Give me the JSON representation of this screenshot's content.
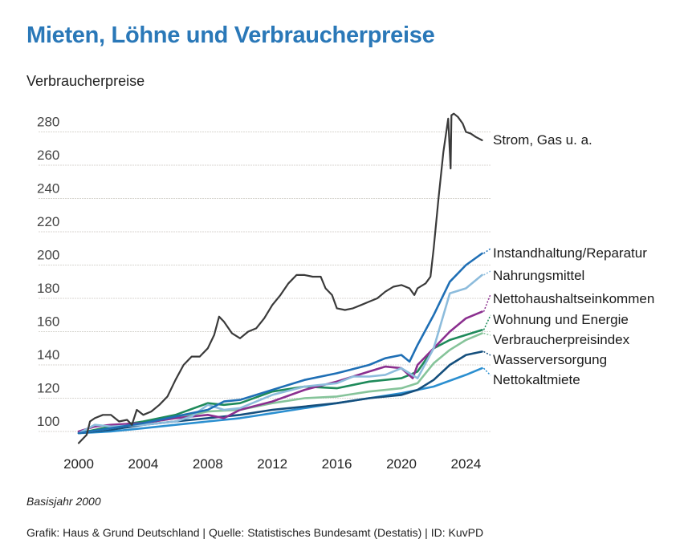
{
  "header": {
    "title": "Mieten, Löhne und Verbraucherpreise",
    "subtitle": "Verbraucherpreise"
  },
  "footer": {
    "note": "Basisjahr 2000",
    "source": "Grafik: Haus & Grund Deutschland | Quelle: Statistisches Bundesamt (Destatis) | ID: KuvPD"
  },
  "chart_data": {
    "type": "line",
    "title": "Mieten, Löhne und Verbraucherpreise",
    "subtitle": "Verbraucherpreise",
    "xlabel": "",
    "ylabel": "",
    "xlim": [
      2000,
      2025.3
    ],
    "ylim": [
      93,
      292
    ],
    "yticks": [
      100,
      120,
      140,
      160,
      180,
      200,
      220,
      240,
      260,
      280
    ],
    "xticks": [
      2000,
      2004,
      2008,
      2012,
      2016,
      2020,
      2024
    ],
    "grid": "horizontal",
    "legend": "direct labels at right end of lines",
    "series": [
      {
        "name": "Strom, Gas u. a.",
        "color": "#3a3a3a",
        "x": [
          2000,
          2000.5,
          2000.7,
          2001,
          2001.5,
          2002,
          2002.5,
          2003,
          2003.3,
          2003.6,
          2004,
          2004.5,
          2005,
          2005.5,
          2006,
          2006.5,
          2007,
          2007.5,
          2008,
          2008.4,
          2008.7,
          2009,
          2009.5,
          2010,
          2010.5,
          2011,
          2011.5,
          2012,
          2012.5,
          2013,
          2013.5,
          2014,
          2014.5,
          2015,
          2015.3,
          2015.7,
          2016,
          2016.5,
          2017,
          2017.5,
          2018,
          2018.5,
          2019,
          2019.5,
          2020,
          2020.5,
          2020.8,
          2021,
          2021.5,
          2021.8,
          2022,
          2022.3,
          2022.6,
          2022.9,
          2023.05,
          2023.1,
          2023.25,
          2023.5,
          2023.8,
          2024,
          2024.3,
          2024.6,
          2025
        ],
        "values": [
          93,
          98,
          106,
          108,
          110,
          110,
          106,
          107,
          104,
          113,
          110,
          112,
          116,
          121,
          131,
          140,
          145,
          145,
          150,
          158,
          169,
          166,
          159,
          156,
          160,
          162,
          168,
          176,
          182,
          189,
          194,
          194,
          193,
          193,
          186,
          182,
          174,
          173,
          174,
          176,
          178,
          180,
          184,
          187,
          188,
          186,
          182,
          186,
          189,
          193,
          210,
          240,
          268,
          288,
          258,
          290,
          291,
          289,
          285,
          280,
          279,
          277,
          275
        ]
      },
      {
        "name": "Instandhaltung/Reparatur",
        "color": "#1f6fb5",
        "x": [
          2000,
          2002,
          2004,
          2006,
          2008,
          2009,
          2010,
          2012,
          2014,
          2016,
          2018,
          2019,
          2020,
          2020.5,
          2021,
          2022,
          2023,
          2024,
          2025
        ],
        "values": [
          99,
          102,
          105,
          109,
          113,
          118,
          119,
          125,
          131,
          135,
          140,
          144,
          146,
          142,
          152,
          170,
          190,
          200,
          207
        ]
      },
      {
        "name": "Nahrungsmittel",
        "color": "#8dbcdc",
        "x": [
          2000,
          2001,
          2002,
          2004,
          2006,
          2007,
          2008,
          2009,
          2010,
          2012,
          2014,
          2016,
          2017,
          2018,
          2019,
          2020,
          2021,
          2022,
          2023,
          2024,
          2025
        ],
        "values": [
          99,
          104,
          103,
          104,
          106,
          109,
          116,
          113,
          114,
          122,
          127,
          129,
          133,
          133,
          134,
          138,
          132,
          150,
          183,
          186,
          194
        ]
      },
      {
        "name": "Nettohaushaltseinkommen",
        "color": "#8b2f8f",
        "x": [
          2000,
          2001,
          2002,
          2004,
          2006,
          2008,
          2009,
          2010,
          2012,
          2014,
          2016,
          2018,
          2019,
          2020,
          2020.7,
          2021,
          2022,
          2023,
          2024,
          2025
        ],
        "values": [
          100,
          103,
          104,
          105,
          108,
          110,
          108,
          113,
          118,
          125,
          130,
          136,
          139,
          138,
          132,
          140,
          150,
          160,
          168,
          172
        ]
      },
      {
        "name": "Wohnung und Energie",
        "color": "#1e8a5a",
        "x": [
          2000,
          2002,
          2004,
          2006,
          2008,
          2009,
          2010,
          2012,
          2014,
          2016,
          2018,
          2020,
          2021,
          2022,
          2023,
          2024,
          2025
        ],
        "values": [
          99,
          103,
          106,
          110,
          117,
          116,
          117,
          124,
          127,
          126,
          130,
          132,
          136,
          150,
          155,
          158,
          161
        ]
      },
      {
        "name": "Verbraucherpreisindex",
        "color": "#86c49a",
        "x": [
          2000,
          2002,
          2004,
          2006,
          2008,
          2010,
          2012,
          2014,
          2016,
          2018,
          2020,
          2021,
          2022,
          2023,
          2024,
          2025
        ],
        "values": [
          99,
          102,
          105,
          108,
          112,
          113,
          117,
          120,
          121,
          124,
          126,
          129,
          141,
          149,
          155,
          159
        ]
      },
      {
        "name": "Wasserversorgung",
        "color": "#154f7d",
        "x": [
          2000,
          2002,
          2004,
          2006,
          2008,
          2010,
          2012,
          2014,
          2016,
          2018,
          2020,
          2021,
          2022,
          2023,
          2024,
          2025
        ],
        "values": [
          99,
          101,
          104,
          106,
          108,
          110,
          113,
          115,
          117,
          120,
          122,
          125,
          131,
          140,
          146,
          148
        ]
      },
      {
        "name": "Nettokaltmiete",
        "color": "#2b8fd0",
        "x": [
          2000,
          2002,
          2004,
          2006,
          2008,
          2010,
          2012,
          2014,
          2016,
          2018,
          2020,
          2022,
          2024,
          2025
        ],
        "values": [
          99,
          100,
          102,
          104,
          106,
          108,
          111,
          114,
          117,
          120,
          123,
          127,
          134,
          138
        ]
      }
    ]
  }
}
